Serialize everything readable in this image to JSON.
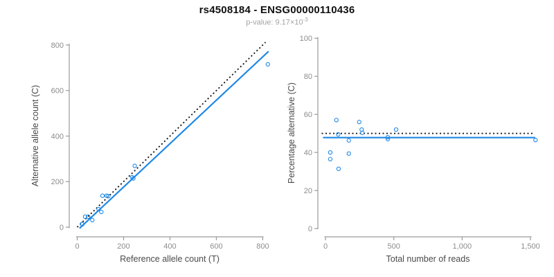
{
  "header": {
    "title": "rs4508184 - ENSG00000110436",
    "subtitle_label": "p-value: ",
    "subtitle_value": "9.17×10",
    "subtitle_exponent": "-3"
  },
  "colors": {
    "accent_blue": "#1E88E5",
    "dotted_line": "#0a0a0a",
    "axis_line": "#9a9a9a",
    "tick_label": "#8c8c8c",
    "axis_title": "#4a4a4a"
  },
  "chart_data": [
    {
      "type": "scatter",
      "name": "allele-counts-scatter",
      "xlabel": "Reference allele count (T)",
      "ylabel": "Alternative allele count (C)",
      "xlim": [
        0,
        820
      ],
      "ylim": [
        0,
        800
      ],
      "xticks": [
        0,
        200,
        400,
        600,
        800
      ],
      "xtick_labels": [
        "0",
        "200",
        "400",
        "600",
        "800"
      ],
      "yticks": [
        0,
        200,
        400,
        600,
        800
      ],
      "ytick_labels": [
        "0",
        "200",
        "400",
        "600",
        "800"
      ],
      "grid": false,
      "legend": "none",
      "points": [
        [
          21,
          14
        ],
        [
          22,
          13
        ],
        [
          34,
          46
        ],
        [
          47,
          46
        ],
        [
          65,
          31
        ],
        [
          92,
          79
        ],
        [
          104,
          67
        ],
        [
          109,
          138
        ],
        [
          127,
          138
        ],
        [
          134,
          136
        ],
        [
          237,
          219
        ],
        [
          242,
          214
        ],
        [
          248,
          269
        ],
        [
          822,
          715
        ]
      ],
      "lines": [
        {
          "name": "identity-line",
          "style": "dotted",
          "color": "#0a0a0a",
          "x1": 0,
          "y1": 0,
          "x2": 812,
          "y2": 812
        },
        {
          "name": "fit-line",
          "style": "solid",
          "color": "#1E88E5",
          "x1": 10,
          "y1": -5,
          "x2": 825,
          "y2": 772
        }
      ]
    },
    {
      "type": "scatter",
      "name": "percentage-vs-reads-scatter",
      "xlabel": "Total number of reads",
      "ylabel": "Percentage alternative (C)",
      "xlim": [
        0,
        1550
      ],
      "ylim": [
        0,
        100
      ],
      "xticks": [
        0,
        500,
        1000,
        1500
      ],
      "xtick_labels": [
        "0",
        "500",
        "1,000",
        "1,500"
      ],
      "yticks": [
        0,
        20,
        40,
        60,
        80,
        100
      ],
      "ytick_labels": [
        "0",
        "20",
        "40",
        "60",
        "80",
        "100"
      ],
      "grid": false,
      "legend": "none",
      "points": [
        [
          35,
          40
        ],
        [
          35,
          36.5
        ],
        [
          80,
          57
        ],
        [
          93,
          49.5
        ],
        [
          96,
          31.4
        ],
        [
          171,
          46.3
        ],
        [
          171,
          39.4
        ],
        [
          247,
          56
        ],
        [
          265,
          52
        ],
        [
          270,
          50.3
        ],
        [
          456,
          48
        ],
        [
          456,
          47
        ],
        [
          517,
          52
        ],
        [
          1537,
          46.5
        ]
      ],
      "lines": [
        {
          "name": "null-50pct-line",
          "style": "dotted",
          "color": "#0a0a0a",
          "x1": -28,
          "y1": 50,
          "x2": 1520,
          "y2": 50
        },
        {
          "name": "fit-line",
          "style": "solid",
          "color": "#1E88E5",
          "x1": -18,
          "y1": 47.8,
          "x2": 1535,
          "y2": 47.8
        }
      ]
    }
  ]
}
